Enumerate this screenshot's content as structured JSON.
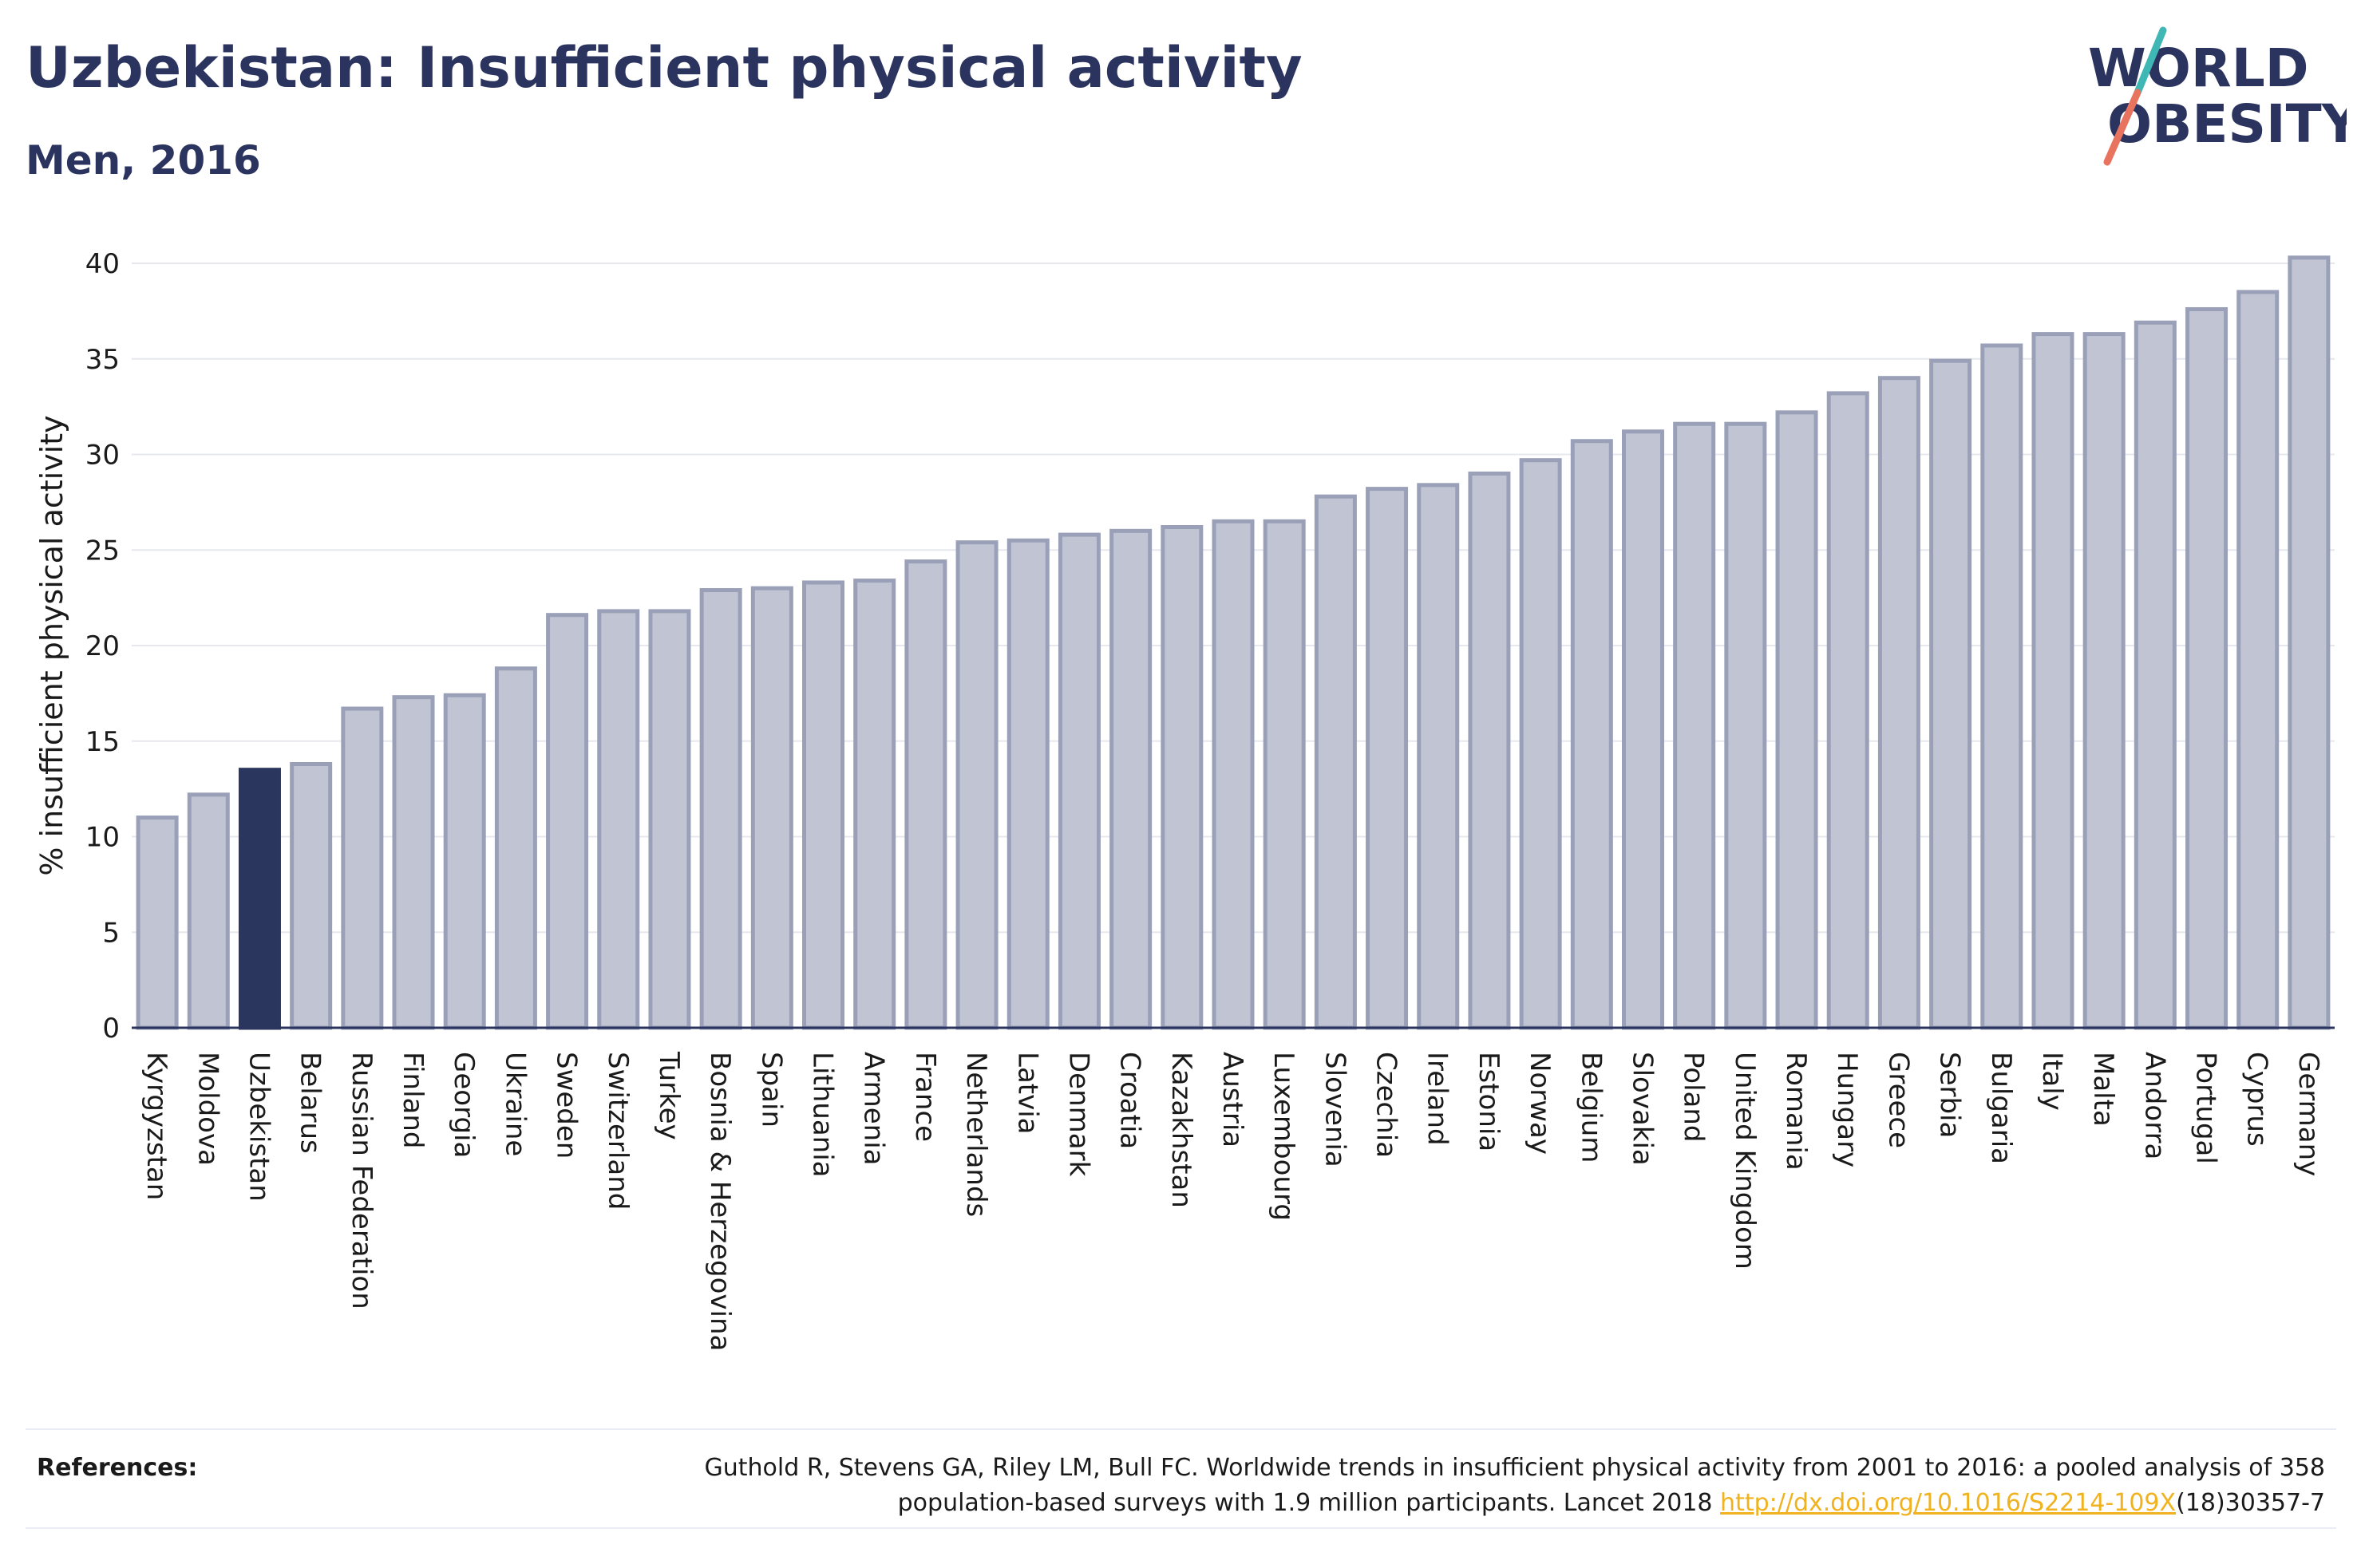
{
  "header": {
    "title": "Uzbekistan: Insufficient physical activity",
    "subtitle": "Men, 2016"
  },
  "logo": {
    "line1": "WORLD",
    "line2": "OBESITY",
    "colors": {
      "text": "#2b345e",
      "slash_teal": "#3fb7b5",
      "slash_coral": "#e8735f"
    }
  },
  "chart_data": {
    "type": "bar",
    "title": "Uzbekistan: Insufficient physical activity",
    "subtitle": "Men, 2016",
    "xlabel": "",
    "ylabel": "% insufficient physical activity",
    "ylim": [
      0,
      40
    ],
    "yticks": [
      0,
      5,
      10,
      15,
      20,
      25,
      30,
      35,
      40
    ],
    "grid": true,
    "highlight": "Uzbekistan",
    "colors": {
      "default_fill": "#c0c4d3",
      "default_stroke": "#9aa0b8",
      "highlight_fill": "#2b365f"
    },
    "categories": [
      "Kyrgyzstan",
      "Moldova",
      "Uzbekistan",
      "Belarus",
      "Russian Federation",
      "Finland",
      "Georgia",
      "Ukraine",
      "Sweden",
      "Switzerland",
      "Turkey",
      "Bosnia & Herzegovina",
      "Spain",
      "Lithuania",
      "Armenia",
      "France",
      "Netherlands",
      "Latvia",
      "Denmark",
      "Croatia",
      "Kazakhstan",
      "Austria",
      "Luxembourg",
      "Slovenia",
      "Czechia",
      "Ireland",
      "Estonia",
      "Norway",
      "Belgium",
      "Slovakia",
      "Poland",
      "United Kingdom",
      "Romania",
      "Hungary",
      "Greece",
      "Serbia",
      "Bulgaria",
      "Italy",
      "Malta",
      "Andorra",
      "Portugal",
      "Cyprus",
      "Germany"
    ],
    "values": [
      11.0,
      12.2,
      13.5,
      13.8,
      16.7,
      17.3,
      17.4,
      18.8,
      21.6,
      21.8,
      21.8,
      22.9,
      23.0,
      23.3,
      23.4,
      24.4,
      25.4,
      25.5,
      25.8,
      26.0,
      26.2,
      26.5,
      26.5,
      27.8,
      28.2,
      28.4,
      29.0,
      29.7,
      30.7,
      31.2,
      31.6,
      31.6,
      32.2,
      33.2,
      34.0,
      34.9,
      35.7,
      36.3,
      36.3,
      36.9,
      37.6,
      38.5,
      40.3
    ]
  },
  "references": {
    "label": "References:",
    "text_line1": "Guthold R, Stevens GA, Riley LM, Bull FC. Worldwide trends in insufficient physical activity from 2001 to 2016: a pooled analysis of 358",
    "text_line2_prefix": "population-based surveys with 1.9 million participants. Lancet 2018 ",
    "link": "http://dx.doi.org/10.1016/S2214-109X",
    "text_line2_suffix": "(18)30357-7"
  }
}
